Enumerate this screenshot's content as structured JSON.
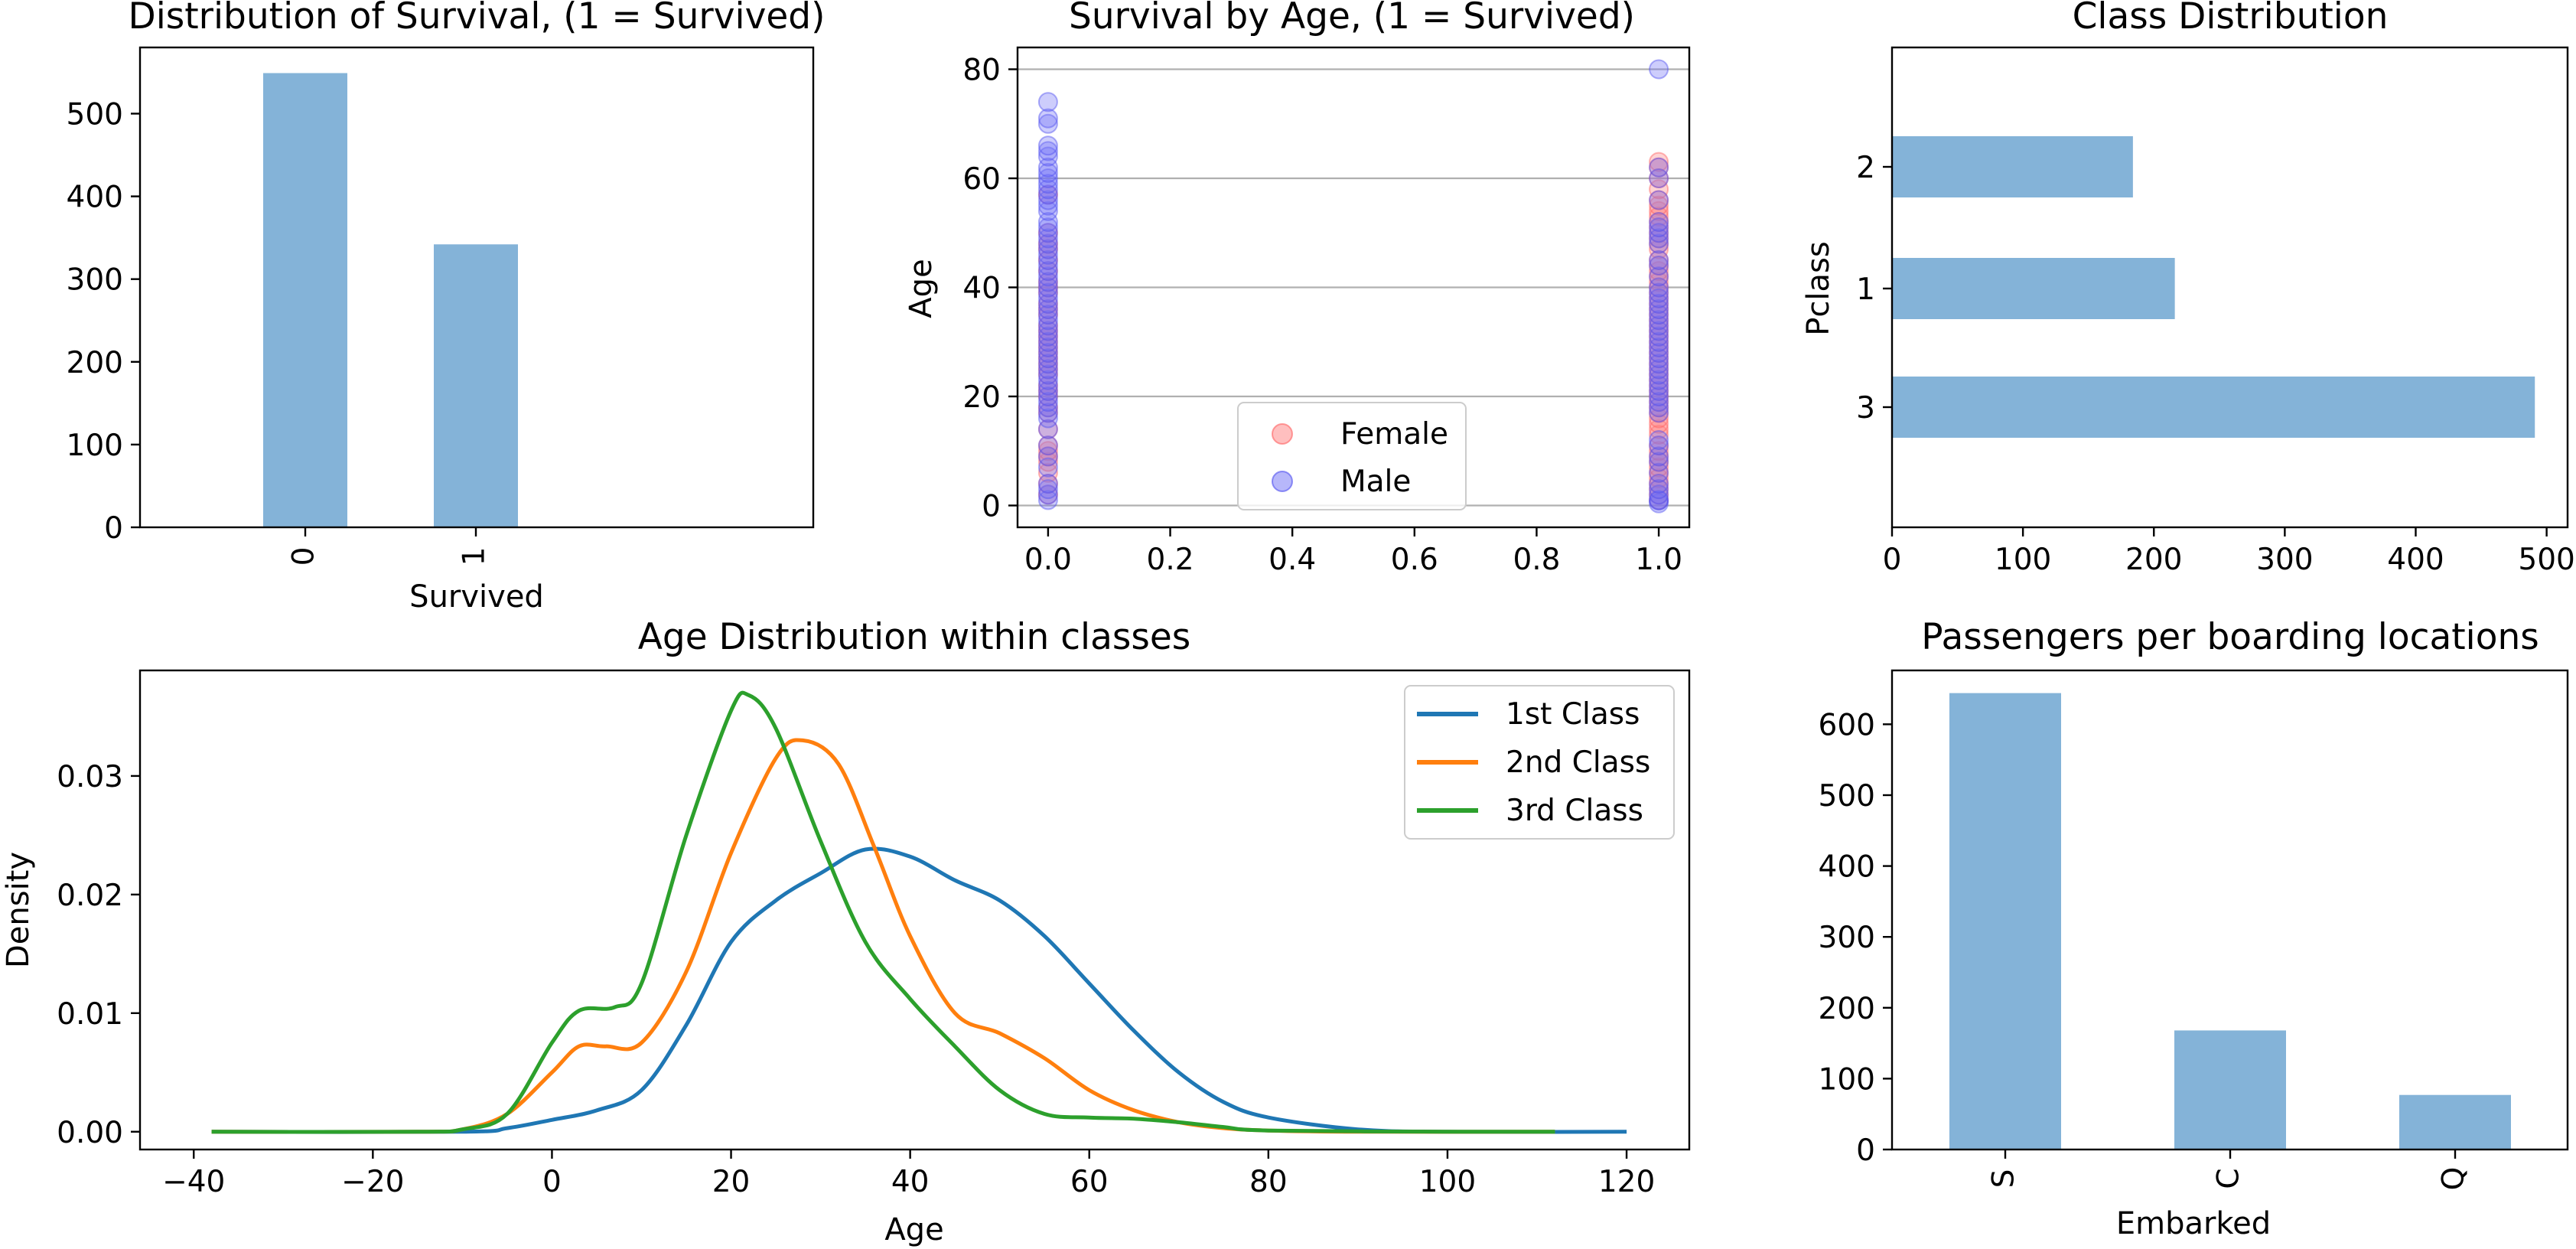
{
  "colors": {
    "bar": "#84b3d8",
    "female": "#ff8080",
    "male": "#6f6ff7",
    "first_class": "#1f77b4",
    "second_class": "#ff7f0e",
    "third_class": "#2ca02c",
    "grid": "#b0b0b0"
  },
  "chart_data": [
    {
      "id": "survival",
      "type": "bar",
      "title": "Distribution of Survival, (1 = Survived)",
      "xlabel": "Survived",
      "ylabel": "",
      "categories": [
        "0",
        "1"
      ],
      "values": [
        549,
        342
      ],
      "ylim": [
        0,
        580
      ],
      "yticks": [
        0,
        100,
        200,
        300,
        400,
        500
      ],
      "grid": false
    },
    {
      "id": "age_scatter",
      "type": "scatter",
      "title": "Survival by Age,  (1 = Survived)",
      "xlabel": "",
      "ylabel": "Age",
      "xlim": [
        -0.05,
        1.05
      ],
      "ylim": [
        -4,
        84
      ],
      "xticks": [
        0.0,
        0.2,
        0.4,
        0.6,
        0.8,
        1.0
      ],
      "xtick_labels": [
        "0.0",
        "0.2",
        "0.4",
        "0.6",
        "0.8",
        "1.0"
      ],
      "yticks": [
        0,
        20,
        40,
        60,
        80
      ],
      "grid": "y",
      "legend": "bottom-center",
      "series": [
        {
          "name": "Female",
          "x0_ages": [
            2,
            4,
            6,
            8,
            9,
            10,
            11,
            14,
            17,
            18,
            20,
            21,
            22,
            24,
            25,
            26,
            27,
            28,
            29,
            30,
            31,
            32,
            33,
            35,
            36,
            37,
            39,
            40,
            41,
            43,
            45,
            47,
            48,
            50,
            57
          ],
          "x1_ages": [
            1,
            2,
            3,
            4,
            5,
            6,
            7,
            8,
            9,
            10,
            11,
            13,
            14,
            15,
            16,
            17,
            18,
            19,
            20,
            21,
            22,
            23,
            24,
            25,
            26,
            27,
            28,
            29,
            30,
            31,
            32,
            33,
            34,
            35,
            36,
            37,
            38,
            39,
            40,
            41,
            42,
            43,
            44,
            45,
            47,
            48,
            49,
            50,
            51,
            52,
            53,
            54,
            55,
            56,
            58,
            60,
            62,
            63
          ]
        },
        {
          "name": "Male",
          "x0_ages": [
            1,
            2,
            3,
            4,
            7,
            9,
            11,
            14,
            16,
            17,
            18,
            19,
            20,
            21,
            22,
            23,
            24,
            25,
            26,
            27,
            28,
            29,
            30,
            31,
            32,
            33,
            34,
            35,
            36,
            37,
            38,
            39,
            40,
            41,
            42,
            43,
            44,
            45,
            46,
            47,
            48,
            49,
            50,
            51,
            52,
            54,
            55,
            56,
            57,
            58,
            59,
            60,
            61,
            62,
            64,
            65,
            66,
            70,
            71,
            74
          ],
          "x1_ages": [
            0.4,
            0.9,
            1,
            2,
            3,
            4,
            6,
            8,
            9,
            11,
            12,
            17,
            18,
            19,
            20,
            21,
            22,
            23,
            24,
            25,
            26,
            27,
            28,
            29,
            30,
            31,
            32,
            33,
            34,
            35,
            36,
            37,
            38,
            39,
            40,
            42,
            44,
            45,
            48,
            49,
            50,
            51,
            52,
            56,
            60,
            62,
            80
          ]
        }
      ]
    },
    {
      "id": "class_dist",
      "type": "bar",
      "orientation": "horizontal",
      "title": "Class Distribution",
      "xlabel": "",
      "ylabel": "Pclass",
      "categories": [
        "3",
        "1",
        "2"
      ],
      "values": [
        491,
        216,
        184
      ],
      "xlim": [
        0,
        516
      ],
      "xticks": [
        0,
        100,
        200,
        300,
        400,
        500
      ],
      "grid": false
    },
    {
      "id": "age_kde",
      "type": "line",
      "title": "Age Distribution within classes",
      "xlabel": "Age",
      "ylabel": "Density",
      "xlim": [
        -46,
        127
      ],
      "ylim": [
        -0.0015,
        0.0389
      ],
      "xticks": [
        -40,
        -20,
        0,
        20,
        40,
        60,
        80,
        100,
        120
      ],
      "yticks": [
        0.0,
        0.01,
        0.02,
        0.03
      ],
      "ytick_labels": [
        "0.00",
        "0.01",
        "0.02",
        "0.03"
      ],
      "legend": "top-right",
      "series": [
        {
          "name": "1st Class",
          "x": [
            -38,
            -10,
            -5,
            0,
            5,
            10,
            15,
            20,
            25,
            30,
            35,
            40,
            45,
            50,
            55,
            60,
            65,
            70,
            75,
            80,
            90,
            100,
            120
          ],
          "y": [
            0,
            0,
            0.0003,
            0.001,
            0.0018,
            0.0035,
            0.009,
            0.016,
            0.0195,
            0.0218,
            0.0238,
            0.0232,
            0.0212,
            0.0195,
            0.0165,
            0.0125,
            0.0085,
            0.005,
            0.0025,
            0.0012,
            0.0002,
            0,
            0
          ]
        },
        {
          "name": "2nd Class",
          "x": [
            -38,
            -15,
            -10,
            -5,
            0,
            3,
            6,
            10,
            15,
            20,
            25,
            28,
            32,
            36,
            40,
            45,
            50,
            55,
            60,
            65,
            70,
            75,
            80,
            90,
            112
          ],
          "y": [
            0,
            0,
            0.0002,
            0.0015,
            0.005,
            0.0072,
            0.0072,
            0.0075,
            0.0135,
            0.0235,
            0.0315,
            0.033,
            0.031,
            0.024,
            0.0165,
            0.01,
            0.0083,
            0.0062,
            0.0035,
            0.0018,
            0.0008,
            0.0003,
            0.0001,
            0,
            0
          ]
        },
        {
          "name": "3rd Class",
          "x": [
            -38,
            -15,
            -10,
            -5,
            0,
            3,
            7,
            10,
            15,
            20,
            22,
            25,
            30,
            35,
            40,
            45,
            50,
            55,
            60,
            65,
            70,
            75,
            80,
            100,
            112
          ],
          "y": [
            0,
            0,
            0.0002,
            0.0015,
            0.0075,
            0.0102,
            0.0105,
            0.0125,
            0.025,
            0.0355,
            0.0368,
            0.034,
            0.0245,
            0.016,
            0.0112,
            0.0072,
            0.0035,
            0.0015,
            0.0012,
            0.0011,
            0.0008,
            0.0004,
            0.0001,
            0,
            0
          ]
        }
      ]
    },
    {
      "id": "embarked",
      "type": "bar",
      "title": "Passengers per boarding locations",
      "xlabel": "Embarked",
      "ylabel": "",
      "categories": [
        "S",
        "C",
        "Q"
      ],
      "values": [
        644,
        168,
        77
      ],
      "ylim": [
        0,
        676
      ],
      "yticks": [
        0,
        100,
        200,
        300,
        400,
        500,
        600
      ],
      "grid": false
    }
  ]
}
